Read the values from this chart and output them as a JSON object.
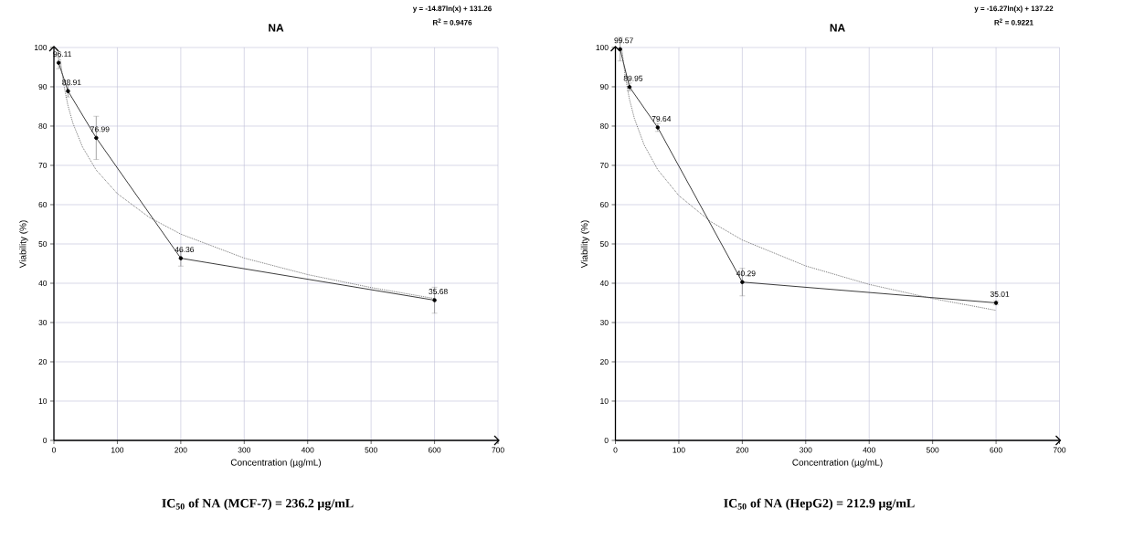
{
  "chart_data": [
    {
      "type": "line",
      "title": "NA",
      "xlabel": "Concentration (µg/mL)",
      "ylabel": "Viability (%)",
      "annotations": [
        "y = -14.87ln(x) + 131.26",
        "R$^{2}$ = 0.9476",
        "**IC$_{50}$ of NA (MCF-7) = 236.2 µg/mL**"
      ],
      "xlim": [
        0,
        700
      ],
      "ylim": [
        0,
        100
      ],
      "xticks": [
        0,
        100,
        200,
        300,
        400,
        500,
        600,
        700
      ],
      "yticks": [
        0,
        10,
        20,
        30,
        40,
        50,
        60,
        70,
        80,
        90,
        100
      ],
      "grid": true,
      "series": [
        {
          "color": "#262626",
          "marker": "circle",
          "line_style": "solid",
          "data_labels": true,
          "x": [
            7.4,
            22.2,
            66.7,
            200,
            600
          ],
          "values": [
            96.11,
            88.91,
            76.99,
            46.36,
            35.68
          ],
          "errors": [
            1.5,
            1.5,
            5.5,
            2,
            3.3
          ]
        },
        {
          "color": "#595959",
          "marker": "none",
          "line_style": "dotted",
          "x": [
            10,
            15,
            22,
            30,
            45,
            66.7,
            100,
            150,
            200,
            300,
            400,
            500,
            600
          ],
          "values": [
            97.0,
            91.0,
            85.3,
            80.7,
            74.7,
            68.8,
            62.8,
            56.8,
            52.5,
            46.4,
            42.2,
            38.9,
            36.1
          ]
        }
      ]
    },
    {
      "type": "line",
      "title": "NA",
      "xlabel": "Concentration (µg/mL)",
      "ylabel": "Viability (%)",
      "annotations": [
        "y = -16.27ln(x) + 137.22",
        "R$^{2}$ = 0.9221",
        "**IC$_{50}$ of NA (HepG2) = 212.9 µg/mL**"
      ],
      "xlim": [
        0,
        700
      ],
      "ylim": [
        0,
        100
      ],
      "xticks": [
        0,
        100,
        200,
        300,
        400,
        500,
        600,
        700
      ],
      "yticks": [
        0,
        10,
        20,
        30,
        40,
        50,
        60,
        70,
        80,
        90,
        100
      ],
      "grid": true,
      "series": [
        {
          "color": "#262626",
          "marker": "circle",
          "line_style": "solid",
          "data_labels": true,
          "x": [
            7.4,
            22.2,
            66.7,
            200,
            600
          ],
          "values": [
            99.57,
            89.95,
            79.64,
            40.29,
            35.01
          ],
          "errors": [
            3,
            1,
            1,
            3.5,
            0.5
          ]
        },
        {
          "color": "#595959",
          "marker": "none",
          "line_style": "dotted",
          "x": [
            10,
            15,
            22,
            30,
            45,
            66.7,
            100,
            150,
            200,
            300,
            400,
            500,
            600
          ],
          "values": [
            99.8,
            93.2,
            86.9,
            81.9,
            75.3,
            68.9,
            62.3,
            55.7,
            51.0,
            44.4,
            39.7,
            36.1,
            33.1
          ]
        }
      ]
    }
  ]
}
